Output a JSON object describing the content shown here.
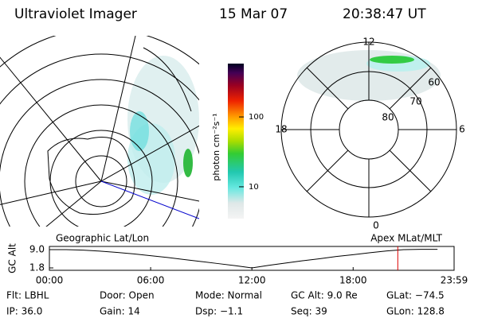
{
  "header": {
    "title": "Ultraviolet Imager",
    "date": "15 Mar 07",
    "time": "20:38:47 UT"
  },
  "colorbar": {
    "label": "photon cm⁻²s⁻¹",
    "log_scale": true,
    "lim": [
      3.5,
      580
    ],
    "ticks": [
      10,
      100
    ]
  },
  "polar": {
    "mlt_labels": [
      "12",
      "18",
      "6",
      "0"
    ],
    "mlat_labels": [
      "60",
      "70",
      "80"
    ]
  },
  "timeline": {
    "type": "line",
    "left_label": "Geographic Lat/Lon",
    "right_label": "Apex MLat/MLT",
    "ylabel": "GC Alt",
    "x": [
      0,
      1,
      2,
      3,
      4,
      5,
      6,
      7,
      8,
      9,
      10,
      11,
      12,
      13,
      14,
      15,
      16,
      17,
      18,
      19,
      20,
      21,
      22,
      23
    ],
    "values": [
      9.0,
      9.0,
      8.8,
      8.4,
      7.9,
      7.3,
      6.6,
      5.9,
      5.1,
      4.3,
      3.5,
      2.7,
      1.8,
      2.8,
      3.7,
      4.6,
      5.4,
      6.3,
      7.0,
      7.8,
      8.5,
      9.0,
      9.1,
      9.1
    ],
    "color": "#000000",
    "xlim": [
      0,
      23.983
    ],
    "ylim": [
      0.86,
      10.25
    ],
    "xticks": [
      {
        "value": 0,
        "label": "00:00"
      },
      {
        "value": 6,
        "label": "06:00"
      },
      {
        "value": 12,
        "label": "12:00"
      },
      {
        "value": 18,
        "label": "18:00"
      },
      {
        "value": 23.983,
        "label": "23:59"
      }
    ],
    "yticks": [
      {
        "value": 9,
        "label": "9.0"
      },
      {
        "value": 1.8,
        "label": "1.8"
      }
    ],
    "current_time": 20.646,
    "marker_color": "#dd0000"
  },
  "status": {
    "rows": [
      [
        "Flt: LBHL",
        "Door: Open",
        "Mode: Normal",
        "GC Alt: 9.0 Re",
        "GLat: −74.5"
      ],
      [
        "IP: 36.0",
        "Gain: 14",
        "Dsp:  −1.1",
        "Seq: 39",
        "GLon: 128.8"
      ]
    ]
  }
}
